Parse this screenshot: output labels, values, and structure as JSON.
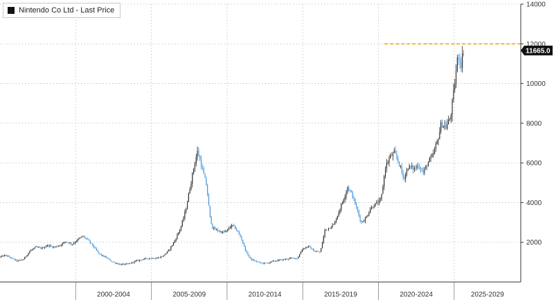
{
  "legend": {
    "label": "Nintendo Co Ltd - Last Price",
    "swatch_color": "#111111"
  },
  "chart_data": {
    "type": "candlestick",
    "title": "",
    "xlabel": "",
    "ylabel": "",
    "ylim": [
      0,
      14000
    ],
    "y_ticks": [
      2000,
      4000,
      6000,
      8000,
      10000,
      12000,
      14000
    ],
    "y_tick_labels": [
      "2000",
      "4000",
      "6000",
      "8000",
      "10000",
      "12000",
      "14000"
    ],
    "x_range": [
      1995.0,
      2029.4
    ],
    "x_period_labels": [
      "2000-2004",
      "2005-2009",
      "2010-2014",
      "2015-2019",
      "2020-2024",
      "2025-2029"
    ],
    "x_period_bounds": [
      [
        2000,
        2005
      ],
      [
        2005,
        2010
      ],
      [
        2010,
        2015
      ],
      [
        2015,
        2020
      ],
      [
        2020,
        2025
      ],
      [
        2025,
        2030
      ]
    ],
    "grid": true,
    "y_axis_side": "right",
    "last_price": 11665.0,
    "last_price_label": "11665.0",
    "reference_line": {
      "value": 12000,
      "from_year": 2020.4,
      "color": "#f0a800"
    },
    "colors": {
      "up": "#222222",
      "down": "#3a8fd6",
      "grid": "#bbbbbb"
    },
    "price_path": [
      [
        1995.0,
        1250
      ],
      [
        1995.4,
        1350
      ],
      [
        1995.8,
        1200
      ],
      [
        1996.2,
        1050
      ],
      [
        1996.6,
        1150
      ],
      [
        1997.0,
        1550
      ],
      [
        1997.4,
        1750
      ],
      [
        1997.8,
        1700
      ],
      [
        1998.2,
        1850
      ],
      [
        1998.6,
        1750
      ],
      [
        1999.0,
        1850
      ],
      [
        1999.4,
        2050
      ],
      [
        1999.8,
        1900
      ],
      [
        2000.2,
        2150
      ],
      [
        2000.5,
        2300
      ],
      [
        2000.8,
        2150
      ],
      [
        2001.2,
        1800
      ],
      [
        2001.6,
        1400
      ],
      [
        2002.0,
        1250
      ],
      [
        2002.5,
        1000
      ],
      [
        2003.0,
        880
      ],
      [
        2003.5,
        900
      ],
      [
        2004.0,
        1050
      ],
      [
        2004.5,
        1150
      ],
      [
        2005.0,
        1200
      ],
      [
        2005.4,
        1200
      ],
      [
        2005.8,
        1300
      ],
      [
        2006.2,
        1600
      ],
      [
        2006.6,
        2100
      ],
      [
        2007.0,
        2800
      ],
      [
        2007.3,
        3600
      ],
      [
        2007.6,
        4800
      ],
      [
        2007.9,
        6000
      ],
      [
        2008.1,
        6600
      ],
      [
        2008.3,
        6000
      ],
      [
        2008.5,
        5400
      ],
      [
        2008.7,
        4800
      ],
      [
        2008.9,
        3300
      ],
      [
        2009.1,
        2700
      ],
      [
        2009.4,
        2600
      ],
      [
        2009.7,
        2500
      ],
      [
        2010.0,
        2550
      ],
      [
        2010.2,
        2750
      ],
      [
        2010.4,
        2850
      ],
      [
        2010.6,
        2700
      ],
      [
        2010.8,
        2450
      ],
      [
        2011.0,
        2150
      ],
      [
        2011.3,
        1500
      ],
      [
        2011.6,
        1150
      ],
      [
        2011.9,
        1050
      ],
      [
        2012.3,
        950
      ],
      [
        2012.7,
        950
      ],
      [
        2013.1,
        1050
      ],
      [
        2013.5,
        1100
      ],
      [
        2013.9,
        1150
      ],
      [
        2014.3,
        1200
      ],
      [
        2014.7,
        1200
      ],
      [
        2015.0,
        1650
      ],
      [
        2015.4,
        1800
      ],
      [
        2015.8,
        1550
      ],
      [
        2016.2,
        1500
      ],
      [
        2016.5,
        2600
      ],
      [
        2016.8,
        2750
      ],
      [
        2017.1,
        2900
      ],
      [
        2017.4,
        3500
      ],
      [
        2017.7,
        4100
      ],
      [
        2018.0,
        4800
      ],
      [
        2018.3,
        4400
      ],
      [
        2018.6,
        3700
      ],
      [
        2018.9,
        3000
      ],
      [
        2019.2,
        3200
      ],
      [
        2019.5,
        3700
      ],
      [
        2019.8,
        3900
      ],
      [
        2020.2,
        4100
      ],
      [
        2020.5,
        5800
      ],
      [
        2020.8,
        6300
      ],
      [
        2021.1,
        6500
      ],
      [
        2021.4,
        6000
      ],
      [
        2021.7,
        5200
      ],
      [
        2022.0,
        5800
      ],
      [
        2022.4,
        5700
      ],
      [
        2022.7,
        5900
      ],
      [
        2023.0,
        5500
      ],
      [
        2023.3,
        6000
      ],
      [
        2023.6,
        6300
      ],
      [
        2023.9,
        7000
      ],
      [
        2024.2,
        8000
      ],
      [
        2024.5,
        7800
      ],
      [
        2024.8,
        8300
      ],
      [
        2025.0,
        9500
      ],
      [
        2025.3,
        11500
      ],
      [
        2025.5,
        11000
      ],
      [
        2025.65,
        11665
      ]
    ]
  }
}
